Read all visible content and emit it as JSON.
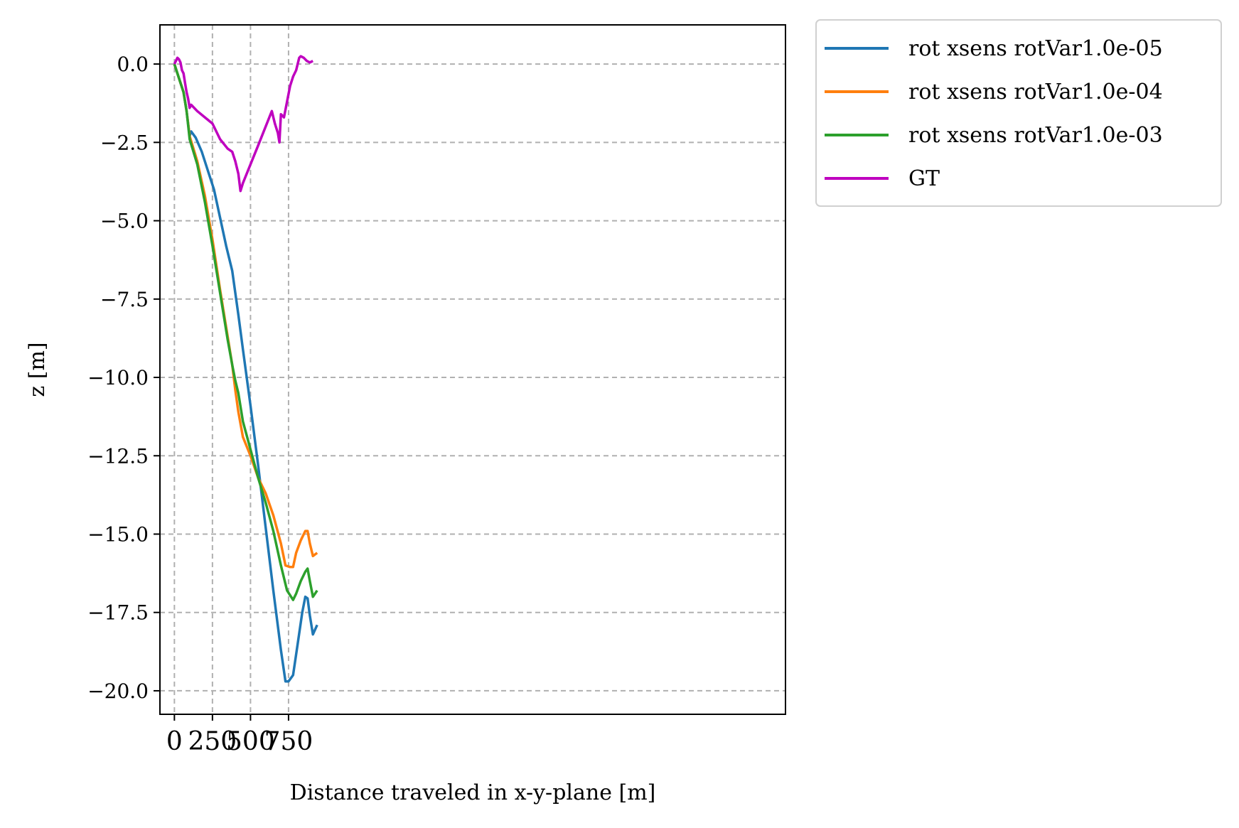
{
  "chart_data": {
    "type": "line",
    "title": "",
    "xlabel": "Distance traveled in x-y-plane [m]",
    "ylabel": "z [m]",
    "xlim": [
      -95,
      1960
    ],
    "ylim": [
      -20.75,
      1.25
    ],
    "xticks": [
      0,
      250,
      500,
      750
    ],
    "xtick_labels": [
      "0",
      "250",
      "500",
      "750"
    ],
    "yticks": [
      0.0,
      -2.5,
      -5.0,
      -7.5,
      -10.0,
      -12.5,
      -15.0,
      -17.5,
      -20.0
    ],
    "ytick_labels": [
      "0.0",
      "−2.5",
      "−5.0",
      "−7.5",
      "−10.0",
      "−12.5",
      "−15.0",
      "−17.5",
      "−20.0"
    ],
    "grid": true,
    "legend_position": "outside-top-right",
    "series": [
      {
        "name": "rot xsens rotVar1.0e-05",
        "color": "#1f77b4",
        "x": [
          0,
          20,
          40,
          60,
          80,
          100,
          110,
          140,
          180,
          220,
          260,
          300,
          340,
          380,
          400,
          420,
          450,
          500,
          550,
          600,
          650,
          700,
          730,
          750,
          780,
          810,
          840,
          860,
          875,
          890,
          910,
          938
        ],
        "y": [
          0.0,
          -0.3,
          -0.6,
          -0.9,
          -1.5,
          -2.3,
          -2.15,
          -2.35,
          -2.8,
          -3.4,
          -4.0,
          -4.9,
          -5.8,
          -6.6,
          -7.3,
          -8.0,
          -9.1,
          -10.9,
          -12.8,
          -14.8,
          -16.8,
          -18.7,
          -19.7,
          -19.7,
          -19.5,
          -18.5,
          -17.5,
          -17.0,
          -17.05,
          -17.6,
          -18.2,
          -17.9
        ]
      },
      {
        "name": "rot xsens rotVar1.0e-04",
        "color": "#ff7f0e",
        "x": [
          0,
          20,
          40,
          60,
          80,
          100,
          150,
          200,
          250,
          300,
          350,
          380,
          400,
          420,
          450,
          500,
          550,
          600,
          650,
          700,
          730,
          760,
          780,
          800,
          830,
          860,
          875,
          890,
          910,
          938
        ],
        "y": [
          0.0,
          -0.3,
          -0.6,
          -0.9,
          -1.5,
          -2.3,
          -3.1,
          -4.2,
          -5.6,
          -7.2,
          -8.7,
          -9.6,
          -10.4,
          -11.1,
          -11.9,
          -12.5,
          -13.2,
          -13.7,
          -14.4,
          -15.3,
          -16.0,
          -16.05,
          -16.05,
          -15.6,
          -15.2,
          -14.9,
          -14.9,
          -15.3,
          -15.7,
          -15.6
        ]
      },
      {
        "name": "rot xsens rotVar1.0e-03",
        "color": "#2ca02c",
        "x": [
          0,
          20,
          40,
          60,
          80,
          100,
          150,
          200,
          250,
          300,
          350,
          380,
          400,
          420,
          450,
          500,
          550,
          600,
          650,
          700,
          740,
          780,
          800,
          830,
          860,
          875,
          890,
          910,
          938
        ],
        "y": [
          0.0,
          -0.3,
          -0.6,
          -0.9,
          -1.5,
          -2.4,
          -3.2,
          -4.4,
          -5.8,
          -7.3,
          -8.8,
          -9.6,
          -10.1,
          -10.5,
          -11.4,
          -12.3,
          -13.2,
          -14.0,
          -14.9,
          -16.0,
          -16.8,
          -17.1,
          -16.9,
          -16.5,
          -16.2,
          -16.1,
          -16.5,
          -17.0,
          -16.8
        ]
      },
      {
        "name": "GT",
        "color": "#bf00bf",
        "x": [
          0,
          10,
          20,
          30,
          40,
          50,
          60,
          70,
          80,
          90,
          100,
          110,
          150,
          200,
          250,
          300,
          350,
          380,
          400,
          420,
          434,
          450,
          550,
          640,
          660,
          680,
          690,
          700,
          720,
          760,
          780,
          800,
          820,
          830,
          850,
          870,
          890,
          910
        ],
        "y": [
          0.0,
          0.1,
          0.2,
          0.15,
          0.05,
          -0.2,
          -0.3,
          -0.6,
          -0.9,
          -1.1,
          -1.4,
          -1.3,
          -1.5,
          -1.7,
          -1.9,
          -2.4,
          -2.7,
          -2.8,
          -3.1,
          -3.5,
          -4.05,
          -3.8,
          -2.6,
          -1.5,
          -1.9,
          -2.2,
          -2.5,
          -1.6,
          -1.7,
          -0.7,
          -0.4,
          -0.2,
          0.2,
          0.25,
          0.2,
          0.1,
          0.05,
          0.1
        ]
      }
    ]
  }
}
